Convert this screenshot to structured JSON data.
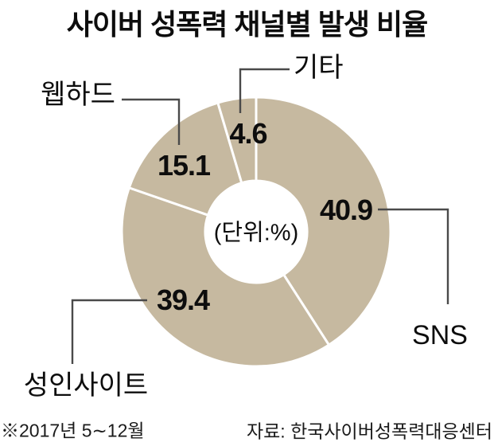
{
  "chart_data": {
    "type": "pie",
    "variant": "donut",
    "title": "사이버 성폭력 채널별 발생 비율",
    "unit_label": "(단위:%)",
    "segments": [
      {
        "label": "SNS",
        "value": 40.9
      },
      {
        "label": "성인사이트",
        "value": 39.4
      },
      {
        "label": "웹하드",
        "value": 15.1
      },
      {
        "label": "기타",
        "value": 4.6
      }
    ],
    "start_angle_deg": 0,
    "direction": "clockwise",
    "total": 100,
    "ring_color": "#c6b9a0",
    "divider_color": "#ffffff",
    "center": [
      322,
      291
    ],
    "inner_radius": 64,
    "outer_radius": 169,
    "legend_position": "callout-labels"
  },
  "footer": {
    "note": "※2017년 5∼12월",
    "source": "자료: 한국사이버성폭력대응센터"
  },
  "colors": {
    "background": "#ffffff",
    "text": "#111111",
    "callout_line": "#4a4a4a"
  }
}
